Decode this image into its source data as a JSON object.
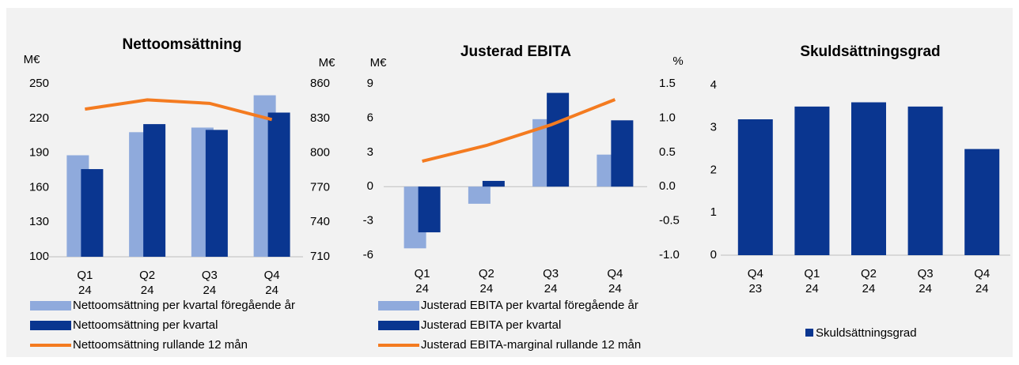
{
  "chart_data": [
    {
      "type": "bar",
      "title": "Nettoomsättning",
      "y_label": "M€",
      "y2_label": "M€",
      "categories": [
        "Q1\n24",
        "Q2\n24",
        "Q3\n24",
        "Q4\n24"
      ],
      "series": [
        {
          "name": "Nettoomsättning per kvartal föregående år",
          "color": "#8faadc",
          "values": [
            188,
            208,
            212,
            240
          ]
        },
        {
          "name": "Nettoomsättning per kvartal",
          "color": "#0a3690",
          "values": [
            176,
            215,
            210,
            225
          ]
        },
        {
          "name": "Nettoomsättning rullande 12 mån",
          "color": "#f47b20",
          "type": "line",
          "axis": "y2",
          "values": [
            838,
            846,
            843,
            829
          ]
        }
      ],
      "ylim": [
        100,
        250
      ],
      "yticks": [
        100,
        130,
        160,
        190,
        220,
        250
      ],
      "y2lim": [
        710,
        860
      ],
      "y2ticks": [
        710,
        740,
        770,
        800,
        830,
        860
      ],
      "legend": "bottom"
    },
    {
      "type": "bar",
      "title": "Justerad EBITA",
      "y_label": "M€",
      "y2_label": "%",
      "categories": [
        "Q1\n24",
        "Q2\n24",
        "Q3\n24",
        "Q4\n24"
      ],
      "series": [
        {
          "name": "Justerad EBITA per kvartal föregående år",
          "color": "#8faadc",
          "values": [
            -5.4,
            -1.5,
            5.9,
            2.8
          ]
        },
        {
          "name": "Justerad EBITA per kvartal",
          "color": "#0a3690",
          "values": [
            -4.0,
            0.5,
            8.2,
            5.8
          ]
        },
        {
          "name": "Justerad EBITA-marginal rullande 12 mån",
          "color": "#f47b20",
          "type": "line",
          "axis": "y2",
          "values": [
            0.37,
            0.6,
            0.9,
            1.27
          ]
        }
      ],
      "ylim": [
        -6,
        9
      ],
      "yticks": [
        -6,
        -3,
        0,
        3,
        6,
        9
      ],
      "y2lim": [
        -1,
        1.5
      ],
      "y2ticks": [
        {
          "value": -1,
          "label": "-1.0"
        },
        -0.5,
        {
          "value": 0,
          "label": "0.0"
        },
        0.5,
        {
          "value": 1,
          "label": "1.0"
        },
        1.5
      ],
      "legend": "bottom"
    },
    {
      "type": "bar",
      "title": "Skuldsättningsgrad",
      "categories": [
        "Q4\n23",
        "Q1\n24",
        "Q2\n24",
        "Q3\n24",
        "Q4\n24"
      ],
      "series": [
        {
          "name": "Skuldsättningsgrad",
          "color": "#0a3690",
          "values": [
            3.2,
            3.5,
            3.6,
            3.5,
            2.5
          ]
        }
      ],
      "ylim": [
        0,
        4
      ],
      "yticks": [
        0,
        1,
        2,
        3,
        4
      ],
      "legend": "bottom"
    }
  ]
}
